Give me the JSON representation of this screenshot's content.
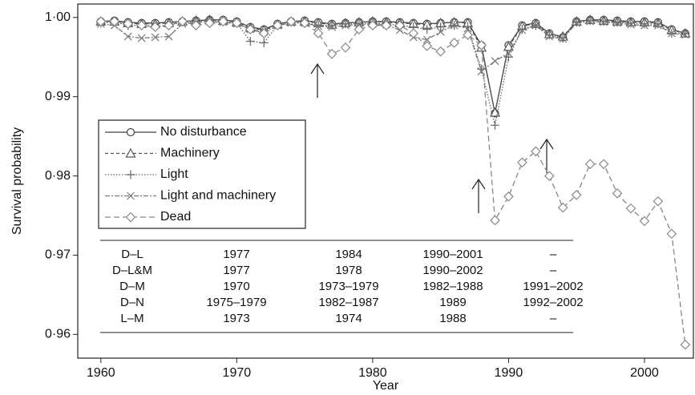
{
  "chart_data": {
    "type": "line",
    "x_label": "Year",
    "y_label": "Survival probability",
    "x": [
      1960,
      1961,
      1962,
      1963,
      1964,
      1965,
      1966,
      1967,
      1968,
      1969,
      1970,
      1971,
      1972,
      1973,
      1974,
      1975,
      1976,
      1977,
      1978,
      1979,
      1980,
      1981,
      1982,
      1983,
      1984,
      1985,
      1986,
      1987,
      1988,
      1989,
      1990,
      1991,
      1992,
      1993,
      1994,
      1995,
      1996,
      1997,
      1998,
      1999,
      2000,
      2001,
      2002,
      2003
    ],
    "xlim": [
      1958.3,
      2003.6
    ],
    "xticks": [
      1960,
      1970,
      1980,
      1990,
      2000
    ],
    "ylim": [
      0.957,
      1.0017
    ],
    "yticks": [
      {
        "value": 0.96,
        "label": "0·96"
      },
      {
        "value": 0.97,
        "label": "0·97"
      },
      {
        "value": 0.98,
        "label": "0·98"
      },
      {
        "value": 0.99,
        "label": "0·99"
      },
      {
        "value": 1.0,
        "label": "1·00"
      }
    ],
    "legend": "center-left",
    "series": [
      {
        "name": "No disturbance",
        "color": "#444444",
        "marker": "circle",
        "dash": "solid",
        "values": [
          0.9995,
          0.9996,
          0.9994,
          0.9993,
          0.9993,
          0.9994,
          0.9995,
          0.9996,
          0.9997,
          0.9997,
          0.9995,
          0.9988,
          0.9985,
          0.9992,
          0.9995,
          0.9996,
          0.9994,
          0.9992,
          0.9993,
          0.9994,
          0.9995,
          0.9995,
          0.9994,
          0.9993,
          0.9992,
          0.9993,
          0.9994,
          0.9994,
          0.9965,
          0.9879,
          0.9965,
          0.999,
          0.9993,
          0.998,
          0.9975,
          0.9995,
          0.9997,
          0.9997,
          0.9996,
          0.9995,
          0.9995,
          0.9994,
          0.9985,
          0.998
        ]
      },
      {
        "name": "Machinery",
        "color": "#555555",
        "marker": "triangle",
        "dash": "4,3",
        "values": [
          0.9995,
          0.9995,
          0.9993,
          0.9992,
          0.9992,
          0.9993,
          0.9995,
          0.9996,
          0.9997,
          0.9996,
          0.9994,
          0.9987,
          0.9984,
          0.9991,
          0.9995,
          0.9995,
          0.9993,
          0.9991,
          0.9993,
          0.9994,
          0.9995,
          0.9994,
          0.9993,
          0.9992,
          0.9991,
          0.9993,
          0.9994,
          0.9993,
          0.9962,
          0.988,
          0.9963,
          0.9989,
          0.9992,
          0.9979,
          0.9976,
          0.9995,
          0.9997,
          0.9996,
          0.9995,
          0.9994,
          0.9994,
          0.9993,
          0.9984,
          0.998
        ]
      },
      {
        "name": "Light",
        "color": "#666666",
        "marker": "plus",
        "dash": "1.5,2",
        "values": [
          0.9993,
          0.9994,
          0.999,
          0.999,
          0.9989,
          0.999,
          0.9994,
          0.9995,
          0.9996,
          0.9995,
          0.9993,
          0.997,
          0.9968,
          0.999,
          0.9994,
          0.9994,
          0.999,
          0.999,
          0.9992,
          0.9992,
          0.9993,
          0.9992,
          0.999,
          0.9988,
          0.9985,
          0.9988,
          0.999,
          0.9988,
          0.9935,
          0.9864,
          0.995,
          0.9985,
          0.999,
          0.9978,
          0.9974,
          0.9994,
          0.9996,
          0.9995,
          0.9994,
          0.9993,
          0.9992,
          0.9992,
          0.998,
          0.998
        ]
      },
      {
        "name": "Light and machinery",
        "color": "#777777",
        "marker": "cross",
        "dash": "6,2,2,2",
        "values": [
          0.9992,
          0.999,
          0.9976,
          0.9974,
          0.9975,
          0.9976,
          0.9992,
          0.9994,
          0.9995,
          0.9994,
          0.9992,
          0.9985,
          0.9982,
          0.999,
          0.9993,
          0.9993,
          0.9989,
          0.9988,
          0.999,
          0.9991,
          0.9992,
          0.9991,
          0.9984,
          0.9975,
          0.9972,
          0.9982,
          0.999,
          0.9986,
          0.9932,
          0.9945,
          0.9955,
          0.9984,
          0.999,
          0.9976,
          0.9973,
          0.9993,
          0.9995,
          0.9994,
          0.9993,
          0.9991,
          0.999,
          0.999,
          0.998,
          0.9978
        ]
      },
      {
        "name": "Dead",
        "color": "#888888",
        "marker": "diamond",
        "dash": "7,4",
        "values": [
          0.9995,
          0.9995,
          0.9992,
          0.999,
          0.9988,
          0.999,
          0.9995,
          0.999,
          0.9993,
          0.9995,
          0.9993,
          0.9985,
          0.998,
          0.999,
          0.9995,
          0.9993,
          0.998,
          0.9954,
          0.9962,
          0.9985,
          0.999,
          0.999,
          0.999,
          0.998,
          0.9964,
          0.9957,
          0.9968,
          0.9978,
          0.9965,
          0.9744,
          0.9774,
          0.9817,
          0.9831,
          0.98,
          0.976,
          0.9776,
          0.9815,
          0.9815,
          0.9778,
          0.9759,
          0.9743,
          0.9768,
          0.9727,
          0.9587
        ]
      }
    ]
  },
  "table": {
    "rows": [
      [
        "D–L",
        "1977",
        "1984",
        "1990–2001",
        "–"
      ],
      [
        "D–L&M",
        "1977",
        "1978",
        "1990–2002",
        "–"
      ],
      [
        "D–M",
        "1970",
        "1973–1979",
        "1982–1988",
        "1991–2002"
      ],
      [
        "D–N",
        "1975–1979",
        "1982–1987",
        "1989",
        "1992–2002"
      ],
      [
        "L–M",
        "1973",
        "1974",
        "1988",
        "–"
      ]
    ]
  }
}
